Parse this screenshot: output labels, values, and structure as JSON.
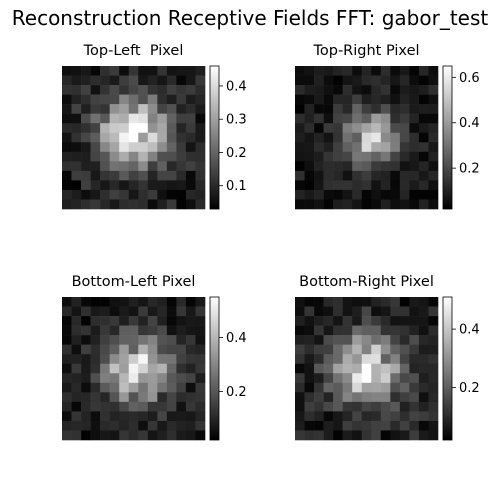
{
  "figure": {
    "title": "Reconstruction Receptive Fields FFT: gabor_test"
  },
  "chart_data": [
    {
      "type": "heatmap",
      "title": "Top-Left  Pixel",
      "grid_size": 15,
      "colormap": "gray",
      "colorbar": {
        "range": [
          0.03,
          0.46
        ],
        "ticks": [
          0.1,
          0.2,
          0.3,
          0.4
        ],
        "tick_labels": [
          "0.1",
          "0.2",
          "0.3",
          "0.4"
        ]
      },
      "center": [
        6.5,
        7.0
      ],
      "sigma": 2.6,
      "peak": 0.44,
      "noise": 0.1,
      "seed": 11
    },
    {
      "type": "heatmap",
      "title": "Top-Right Pixel",
      "grid_size": 15,
      "colormap": "gray",
      "colorbar": {
        "range": [
          0.02,
          0.65
        ],
        "ticks": [
          0.2,
          0.4,
          0.6
        ],
        "tick_labels": [
          "0.2",
          "0.4",
          "0.6"
        ]
      },
      "center": [
        7.0,
        7.5
      ],
      "sigma": 2.0,
      "peak": 0.52,
      "noise": 0.12,
      "seed": 23
    },
    {
      "type": "heatmap",
      "title": "Bottom-Left Pixel",
      "grid_size": 15,
      "colormap": "gray",
      "colorbar": {
        "range": [
          0.02,
          0.55
        ],
        "ticks": [
          0.2,
          0.4
        ],
        "tick_labels": [
          "0.2",
          "0.4"
        ]
      },
      "center": [
        7.2,
        7.3
      ],
      "sigma": 2.5,
      "peak": 0.48,
      "noise": 0.11,
      "seed": 37
    },
    {
      "type": "heatmap",
      "title": "Bottom-Right Pixel",
      "grid_size": 15,
      "colormap": "gray",
      "colorbar": {
        "range": [
          0.02,
          0.51
        ],
        "ticks": [
          0.2,
          0.4
        ],
        "tick_labels": [
          "0.2",
          "0.4"
        ]
      },
      "center": [
        7.0,
        7.0
      ],
      "sigma": 2.5,
      "peak": 0.46,
      "noise": 0.12,
      "seed": 53
    }
  ]
}
